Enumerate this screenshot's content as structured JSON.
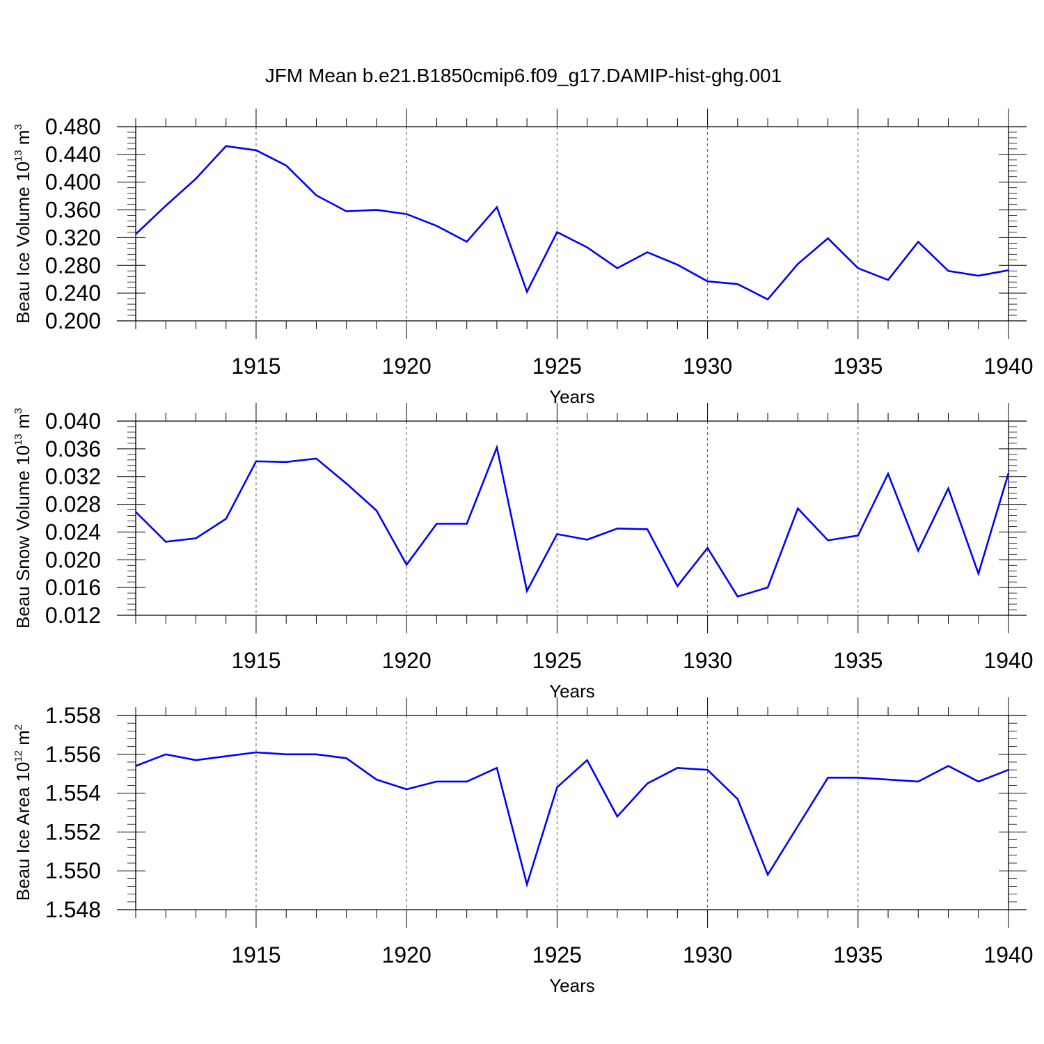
{
  "title": "JFM Mean b.e21.B1850cmip6.f09_g17.DAMIP-hist-ghg.001",
  "line_color": "#0000ff",
  "chart_data": [
    {
      "type": "line",
      "title": "JFM Mean b.e21.B1850cmip6.f09_g17.DAMIP-hist-ghg.001",
      "xlabel": "Years",
      "ylabel": "Beau Ice Volume 10",
      "ylabel_exp": "13",
      "ylabel_unit": "m",
      "ylabel_unit_exp": "3",
      "xlim": [
        1911,
        1940
      ],
      "ylim": [
        0.2,
        0.48
      ],
      "yticks": [
        "0.200",
        "0.240",
        "0.280",
        "0.320",
        "0.360",
        "0.400",
        "0.440",
        "0.480"
      ],
      "xticks": [
        "1915",
        "1920",
        "1925",
        "1930",
        "1935",
        "1940"
      ],
      "grid": "vertical dashed at labeled years",
      "x": [
        1911,
        1912,
        1913,
        1914,
        1915,
        1916,
        1917,
        1918,
        1919,
        1920,
        1921,
        1922,
        1923,
        1924,
        1925,
        1926,
        1927,
        1928,
        1929,
        1930,
        1931,
        1932,
        1933,
        1934,
        1935,
        1936,
        1937,
        1938,
        1939,
        1940
      ],
      "values": [
        0.325,
        0.366,
        0.405,
        0.452,
        0.446,
        0.424,
        0.381,
        0.358,
        0.36,
        0.354,
        0.337,
        0.314,
        0.364,
        0.242,
        0.328,
        0.306,
        0.276,
        0.299,
        0.281,
        0.257,
        0.253,
        0.231,
        0.282,
        0.319,
        0.276,
        0.259,
        0.314,
        0.272,
        0.265,
        0.273
      ]
    },
    {
      "type": "line",
      "xlabel": "Years",
      "ylabel": "Beau Snow Volume 10",
      "ylabel_exp": "13",
      "ylabel_unit": "m",
      "ylabel_unit_exp": "3",
      "xlim": [
        1911,
        1940
      ],
      "ylim": [
        0.012,
        0.04
      ],
      "yticks": [
        "0.012",
        "0.016",
        "0.020",
        "0.024",
        "0.028",
        "0.032",
        "0.036",
        "0.040"
      ],
      "xticks": [
        "1915",
        "1920",
        "1925",
        "1930",
        "1935",
        "1940"
      ],
      "grid": "vertical dashed at labeled years",
      "x": [
        1911,
        1912,
        1913,
        1914,
        1915,
        1916,
        1917,
        1918,
        1919,
        1920,
        1921,
        1922,
        1923,
        1924,
        1925,
        1926,
        1927,
        1928,
        1929,
        1930,
        1931,
        1932,
        1933,
        1934,
        1935,
        1936,
        1937,
        1938,
        1939,
        1940
      ],
      "values": [
        0.0269,
        0.0226,
        0.0231,
        0.0259,
        0.0342,
        0.0341,
        0.0346,
        0.031,
        0.0271,
        0.0193,
        0.0252,
        0.0252,
        0.0362,
        0.0155,
        0.0237,
        0.0229,
        0.0245,
        0.0244,
        0.0162,
        0.0217,
        0.0147,
        0.016,
        0.0274,
        0.0228,
        0.0235,
        0.0324,
        0.0213,
        0.0303,
        0.018,
        0.0325
      ]
    },
    {
      "type": "line",
      "xlabel": "Years",
      "ylabel": "Beau Ice Area 10",
      "ylabel_exp": "12",
      "ylabel_unit": "m",
      "ylabel_unit_exp": "2",
      "xlim": [
        1911,
        1940
      ],
      "ylim": [
        1.548,
        1.558
      ],
      "yticks": [
        "1.548",
        "1.550",
        "1.552",
        "1.554",
        "1.556",
        "1.558"
      ],
      "xticks": [
        "1915",
        "1920",
        "1925",
        "1930",
        "1935",
        "1940"
      ],
      "grid": "vertical dashed at labeled years",
      "x": [
        1911,
        1912,
        1913,
        1914,
        1915,
        1916,
        1917,
        1918,
        1919,
        1920,
        1921,
        1922,
        1923,
        1924,
        1925,
        1926,
        1927,
        1928,
        1929,
        1930,
        1931,
        1932,
        1933,
        1934,
        1935,
        1936,
        1937,
        1938,
        1939,
        1940
      ],
      "values": [
        1.5554,
        1.556,
        1.5557,
        1.5559,
        1.5561,
        1.556,
        1.556,
        1.5558,
        1.5547,
        1.5542,
        1.5546,
        1.5546,
        1.5553,
        1.5493,
        1.5543,
        1.5557,
        1.5528,
        1.5545,
        1.5553,
        1.5552,
        1.5537,
        1.5498,
        1.5523,
        1.5548,
        1.5548,
        1.5547,
        1.5546,
        1.5554,
        1.5546,
        1.5552
      ]
    }
  ]
}
